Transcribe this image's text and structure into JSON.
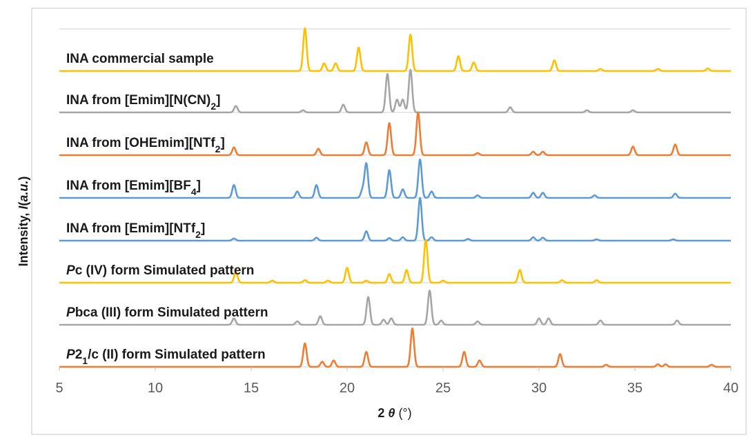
{
  "chart_data": {
    "type": "line",
    "title": "",
    "xlabel": "2 θ (°)",
    "ylabel": "Intensity, I(a.u.)",
    "xlim": [
      5,
      40
    ],
    "x_ticks": [
      "5",
      "10",
      "15",
      "20",
      "25",
      "30",
      "35",
      "40"
    ],
    "stacked_offset": true,
    "grid": "horizontal",
    "legend": "none (labels printed above each trace)",
    "series": [
      {
        "label_runs": [
          {
            "t": "INA commercial sample"
          }
        ],
        "color": "#ffc000",
        "peaks": [
          [
            17.8,
            1.0
          ],
          [
            18.8,
            0.18
          ],
          [
            19.4,
            0.18
          ],
          [
            20.6,
            0.55
          ],
          [
            23.3,
            0.85
          ],
          [
            25.8,
            0.35
          ],
          [
            26.6,
            0.2
          ],
          [
            30.8,
            0.25
          ],
          [
            33.2,
            0.05
          ],
          [
            36.2,
            0.05
          ],
          [
            38.8,
            0.06
          ]
        ]
      },
      {
        "label_runs": [
          {
            "t": "INA from [Emim][N(CN)"
          },
          {
            "t": "2",
            "sub": true
          },
          {
            "t": "]"
          }
        ],
        "color": "#a5a5a5",
        "peaks": [
          [
            14.2,
            0.15
          ],
          [
            17.7,
            0.05
          ],
          [
            19.8,
            0.18
          ],
          [
            22.1,
            0.9
          ],
          [
            22.6,
            0.3
          ],
          [
            22.9,
            0.3
          ],
          [
            23.3,
            1.0
          ],
          [
            28.5,
            0.12
          ],
          [
            32.5,
            0.05
          ],
          [
            34.9,
            0.05
          ]
        ]
      },
      {
        "label_runs": [
          {
            "t": "INA from [OHEmim][NTf"
          },
          {
            "t": "2",
            "sub": true
          },
          {
            "t": "]"
          }
        ],
        "color": "#ed7d31",
        "peaks": [
          [
            14.1,
            0.18
          ],
          [
            18.5,
            0.15
          ],
          [
            21.0,
            0.3
          ],
          [
            22.2,
            0.75
          ],
          [
            23.7,
            1.0
          ],
          [
            26.8,
            0.05
          ],
          [
            29.7,
            0.08
          ],
          [
            30.2,
            0.08
          ],
          [
            34.9,
            0.2
          ],
          [
            37.1,
            0.25
          ]
        ]
      },
      {
        "label_runs": [
          {
            "t": "INA from [Emim][BF"
          },
          {
            "t": "4",
            "sub": true
          },
          {
            "t": "]"
          }
        ],
        "color": "#5b9bd5",
        "peaks": [
          [
            14.1,
            0.3
          ],
          [
            17.4,
            0.15
          ],
          [
            18.4,
            0.3
          ],
          [
            20.8,
            0.18
          ],
          [
            21.0,
            0.8
          ],
          [
            22.2,
            0.65
          ],
          [
            22.9,
            0.2
          ],
          [
            23.8,
            0.9
          ],
          [
            24.4,
            0.15
          ],
          [
            26.8,
            0.06
          ],
          [
            29.7,
            0.12
          ],
          [
            30.2,
            0.12
          ],
          [
            32.9,
            0.06
          ],
          [
            37.1,
            0.1
          ]
        ]
      },
      {
        "label_runs": [
          {
            "t": "INA from [Emim][NTf"
          },
          {
            "t": "2",
            "sub": true
          },
          {
            "t": "]"
          }
        ],
        "color": "#5b9bd5",
        "peaks": [
          [
            14.1,
            0.05
          ],
          [
            18.4,
            0.07
          ],
          [
            21.0,
            0.22
          ],
          [
            22.2,
            0.06
          ],
          [
            22.9,
            0.08
          ],
          [
            23.8,
            1.0
          ],
          [
            24.4,
            0.08
          ],
          [
            26.3,
            0.04
          ],
          [
            29.7,
            0.08
          ],
          [
            30.2,
            0.07
          ],
          [
            33.0,
            0.03
          ],
          [
            37.0,
            0.03
          ]
        ]
      },
      {
        "label_runs": [
          {
            "t": "P",
            "i": true
          },
          {
            "t": "c (IV) form Simulated pattern"
          }
        ],
        "color": "#ffc000",
        "peaks": [
          [
            14.2,
            0.25
          ],
          [
            16.1,
            0.05
          ],
          [
            17.8,
            0.06
          ],
          [
            19.0,
            0.05
          ],
          [
            20.0,
            0.35
          ],
          [
            21.0,
            0.05
          ],
          [
            22.2,
            0.2
          ],
          [
            23.1,
            0.3
          ],
          [
            24.1,
            1.0
          ],
          [
            25.0,
            0.05
          ],
          [
            29.0,
            0.3
          ],
          [
            31.2,
            0.06
          ],
          [
            33.0,
            0.06
          ]
        ]
      },
      {
        "label_runs": [
          {
            "t": "P",
            "i": true
          },
          {
            "t": "bca (III) form Simulated pattern"
          }
        ],
        "color": "#a5a5a5",
        "peaks": [
          [
            14.1,
            0.15
          ],
          [
            17.4,
            0.08
          ],
          [
            18.6,
            0.2
          ],
          [
            21.1,
            0.65
          ],
          [
            21.9,
            0.12
          ],
          [
            22.3,
            0.15
          ],
          [
            24.3,
            0.8
          ],
          [
            24.9,
            0.1
          ],
          [
            26.8,
            0.08
          ],
          [
            30.0,
            0.15
          ],
          [
            30.5,
            0.15
          ],
          [
            33.2,
            0.1
          ],
          [
            37.2,
            0.1
          ]
        ]
      },
      {
        "label_runs": [
          {
            "t": "P",
            "i": true
          },
          {
            "t": "2"
          },
          {
            "t": "1",
            "sub": true
          },
          {
            "t": "/c (II) form Simulated pattern"
          }
        ],
        "color": "#ed7d31",
        "peaks": [
          [
            17.8,
            0.55
          ],
          [
            18.7,
            0.12
          ],
          [
            19.3,
            0.15
          ],
          [
            21.0,
            0.35
          ],
          [
            23.4,
            0.9
          ],
          [
            26.1,
            0.35
          ],
          [
            26.9,
            0.15
          ],
          [
            31.1,
            0.3
          ],
          [
            33.5,
            0.05
          ],
          [
            36.2,
            0.06
          ],
          [
            36.6,
            0.06
          ],
          [
            39.0,
            0.05
          ]
        ]
      }
    ]
  }
}
